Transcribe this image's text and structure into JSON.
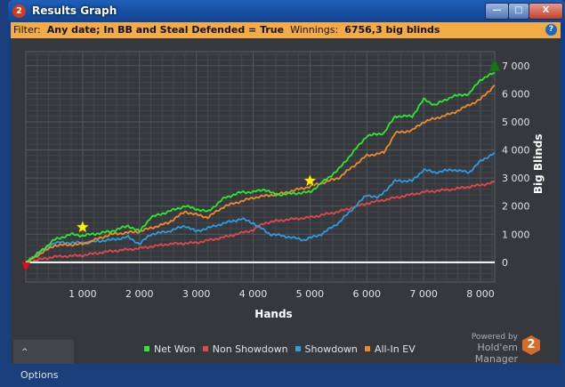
{
  "window": {
    "title": "Results Graph",
    "app_icon": "hem2-icon",
    "controls": [
      "minimize",
      "maximize",
      "close"
    ]
  },
  "filter_bar": {
    "filter_label": "Filter:",
    "filter_value": "Any date; In BB and Steal Defended = True",
    "winnings_label": "Winnings:",
    "winnings_value": "6756,3 big blinds",
    "help_icon": "help-icon"
  },
  "options_button": {
    "label": "Options",
    "icon": "chevron-up-icon"
  },
  "branding": {
    "powered_by": "Powered by",
    "product": "Hold'em Manager",
    "logo_text": "2"
  },
  "chart_data": {
    "type": "line",
    "xlabel": "Hands",
    "ylabel": "Big Blinds",
    "xlim": [
      0,
      8250
    ],
    "ylim": [
      -700,
      7500
    ],
    "x_ticks": [
      1000,
      2000,
      3000,
      4000,
      5000,
      6000,
      7000,
      8000
    ],
    "x_tick_labels": [
      "1 000",
      "2 000",
      "3 000",
      "4 000",
      "5 000",
      "6 000",
      "7 000",
      "8 000"
    ],
    "y_ticks": [
      0,
      1000,
      2000,
      3000,
      4000,
      5000,
      6000,
      7000
    ],
    "y_tick_labels": [
      "0",
      "1 000",
      "2 000",
      "3 000",
      "4 000",
      "5 000",
      "6 000",
      "7 000"
    ],
    "grid": true,
    "background": "#35383c",
    "legend_position": "bottom",
    "series": [
      {
        "name": "Net Won",
        "color": "#2ee82e",
        "x": [
          0,
          200,
          500,
          800,
          1000,
          1500,
          1800,
          2000,
          2200,
          2500,
          2800,
          3000,
          3200,
          3500,
          3800,
          4000,
          4200,
          4400,
          4700,
          5000,
          5500,
          6000,
          6300,
          6500,
          6800,
          7000,
          7200,
          7500,
          7800,
          8000,
          8250
        ],
        "y": [
          0,
          300,
          800,
          1000,
          950,
          1100,
          1300,
          1100,
          1600,
          1800,
          2000,
          1900,
          1800,
          2300,
          2500,
          2500,
          2600,
          2400,
          2450,
          2500,
          3300,
          4500,
          4600,
          5200,
          5200,
          5800,
          5600,
          5900,
          6000,
          6500,
          6750
        ]
      },
      {
        "name": "Non Showdown",
        "color": "#e2474b",
        "x": [
          0,
          500,
          1000,
          1500,
          2000,
          2500,
          3000,
          3500,
          4000,
          4200,
          4500,
          5000,
          5500,
          6000,
          6500,
          7000,
          7500,
          8000,
          8250
        ],
        "y": [
          0,
          200,
          250,
          400,
          500,
          650,
          700,
          900,
          1150,
          1400,
          1500,
          1600,
          1800,
          2100,
          2300,
          2500,
          2600,
          2750,
          2850
        ]
      },
      {
        "name": "Showdown",
        "color": "#2f9be0",
        "x": [
          0,
          500,
          1000,
          1500,
          1800,
          2000,
          2200,
          2500,
          2800,
          3000,
          3500,
          3800,
          4000,
          4300,
          4500,
          4900,
          5200,
          5500,
          6000,
          6200,
          6500,
          6800,
          7000,
          7200,
          7500,
          7800,
          8000,
          8250
        ],
        "y": [
          0,
          700,
          700,
          800,
          900,
          650,
          1000,
          1100,
          1300,
          1100,
          1400,
          1550,
          1400,
          1000,
          950,
          800,
          1000,
          1400,
          2400,
          2300,
          2900,
          2900,
          3300,
          3200,
          3300,
          3200,
          3600,
          3900
        ]
      },
      {
        "name": "All-In EV",
        "color": "#f08a2c",
        "x": [
          0,
          500,
          1000,
          1500,
          2000,
          2500,
          2800,
          3000,
          3200,
          3500,
          4000,
          4500,
          5000,
          5500,
          6000,
          6300,
          6500,
          6800,
          7000,
          7500,
          8000,
          8250
        ],
        "y": [
          0,
          600,
          650,
          1000,
          1100,
          1400,
          1800,
          1700,
          1600,
          2000,
          2300,
          2450,
          2700,
          3000,
          3800,
          3900,
          4600,
          4700,
          5000,
          5300,
          5800,
          6300
        ]
      }
    ],
    "markers": [
      {
        "type": "star",
        "x": 1000,
        "y": 1250,
        "color": "#ffee00"
      },
      {
        "type": "star",
        "x": 5000,
        "y": 2900,
        "color": "#ffee00"
      },
      {
        "type": "triangle-down",
        "x": 0,
        "y": -150,
        "color": "#e01010"
      },
      {
        "type": "triangle-up",
        "x": 8250,
        "y": 7000,
        "color": "#0f7a0f"
      }
    ]
  }
}
